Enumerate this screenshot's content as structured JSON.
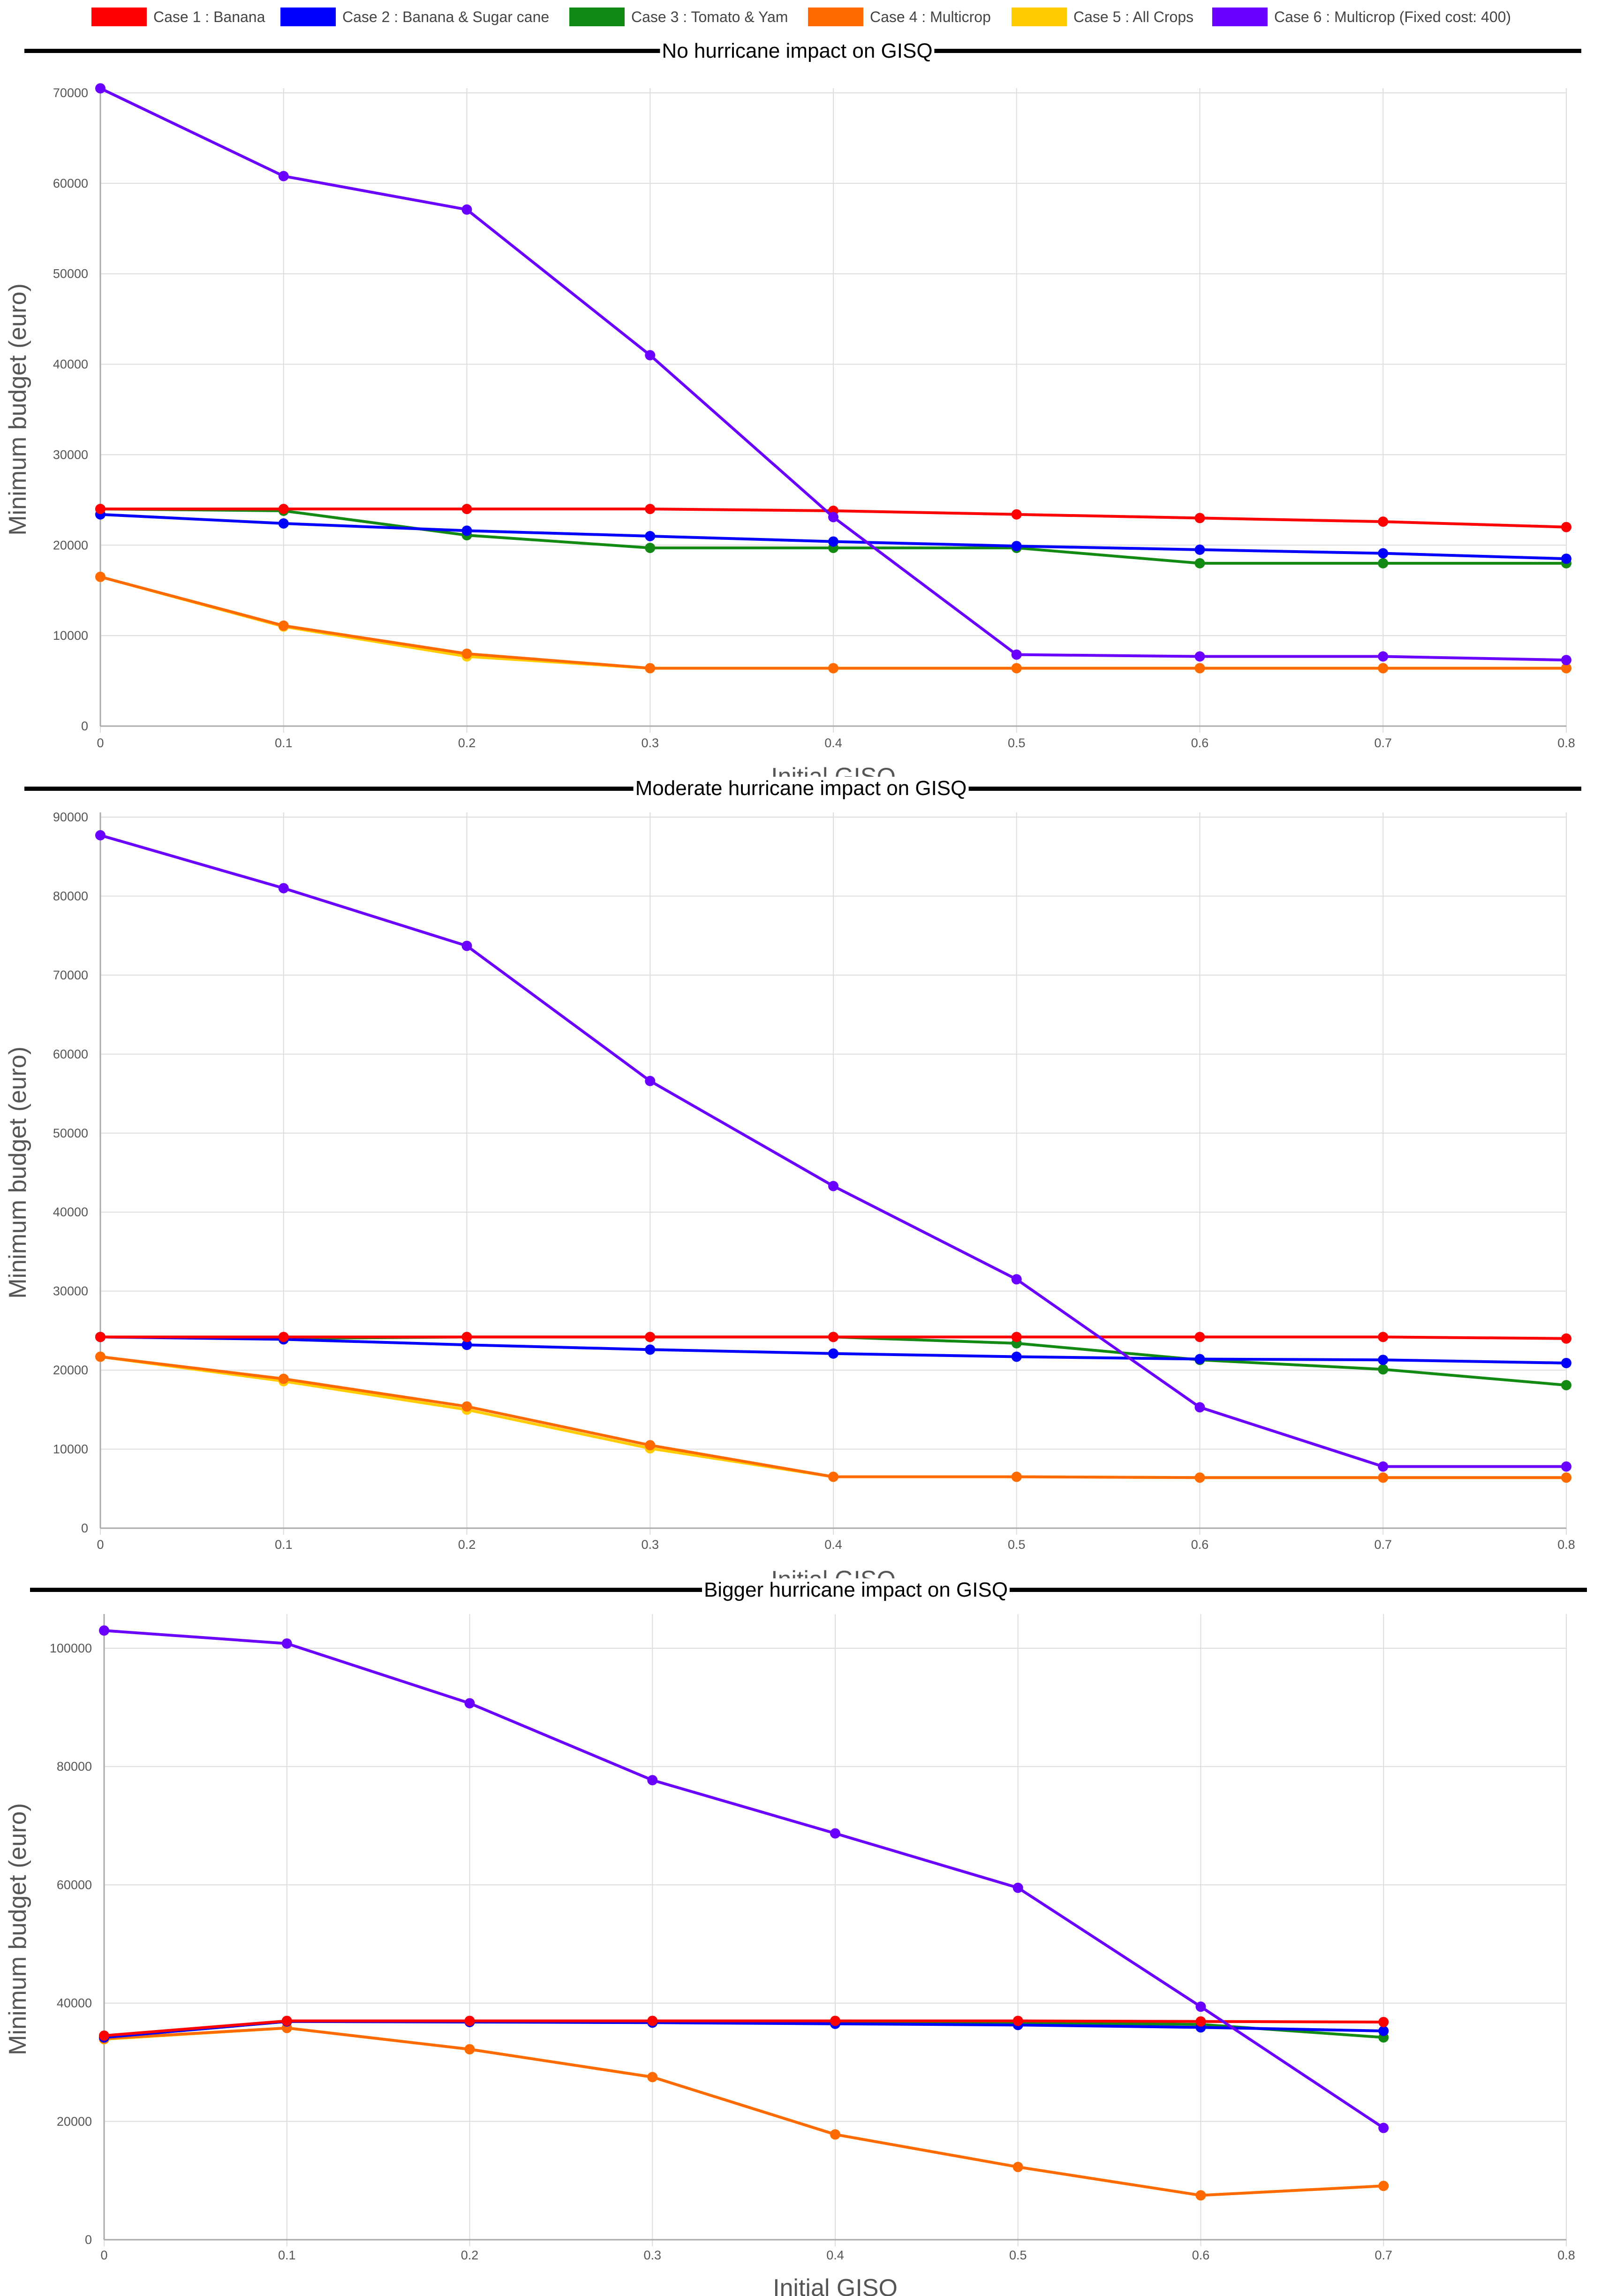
{
  "legend": {
    "items": [
      {
        "label": "Case 1 : Banana",
        "color": "#ff0000"
      },
      {
        "label": "Case 2 : Banana & Sugar cane",
        "color": "#0000ff"
      },
      {
        "label": "Case 3 : Tomato & Yam",
        "color": "#138a13"
      },
      {
        "label": "Case 4 : Multicrop",
        "color": "#ff6a00"
      },
      {
        "label": "Case 5 : All Crops",
        "color": "#ffcc00"
      },
      {
        "label": "Case 6 : Multicrop (Fixed cost: 400)",
        "color": "#6a00ff"
      }
    ]
  },
  "chart_data": [
    {
      "type": "line",
      "title": "No hurricane impact on GISQ",
      "xlabel": "Initial GISQ",
      "ylabel": "Minimum budget (euro)",
      "x": [
        0,
        0.1,
        0.2,
        0.3,
        0.4,
        0.5,
        0.6,
        0.7,
        0.8
      ],
      "xticks": [
        "0",
        "0.1",
        "0.2",
        "0.3",
        "0.4",
        "0.5",
        "0.6",
        "0.7",
        "0.8"
      ],
      "xlim": [
        0,
        0.8
      ],
      "ylim": [
        0,
        70000
      ],
      "yticks": [
        "0",
        "10000",
        "20000",
        "30000",
        "40000",
        "50000",
        "60000",
        "70000"
      ],
      "series": [
        {
          "name": "Case 5 : All Crops",
          "values": [
            16500,
            11000,
            7700,
            6400,
            6400,
            6400,
            6400,
            6400,
            6400
          ]
        },
        {
          "name": "Case 4 : Multicrop",
          "values": [
            16500,
            11100,
            8000,
            6400,
            6400,
            6400,
            6400,
            6400,
            6400
          ]
        },
        {
          "name": "Case 3 : Tomato & Yam",
          "values": [
            24000,
            23800,
            21100,
            19700,
            19700,
            19700,
            18000,
            18000,
            18000
          ]
        },
        {
          "name": "Case 2 : Banana & Sugar cane",
          "values": [
            23400,
            22400,
            21600,
            21000,
            20400,
            19900,
            19500,
            19100,
            18500
          ]
        },
        {
          "name": "Case 1 : Banana",
          "values": [
            24000,
            24000,
            24000,
            24000,
            23800,
            23400,
            23000,
            22600,
            22000
          ]
        },
        {
          "name": "Case 6 : Multicrop (Fixed cost: 400)",
          "values": [
            70500,
            60800,
            57100,
            41000,
            23100,
            7900,
            7700,
            7700,
            7300
          ]
        }
      ]
    },
    {
      "type": "line",
      "title": "Moderate hurricane impact on GISQ",
      "xlabel": "Initial GISQ",
      "ylabel": "Minimum budget (euro)",
      "x": [
        0,
        0.1,
        0.2,
        0.3,
        0.4,
        0.5,
        0.6,
        0.7,
        0.8
      ],
      "xticks": [
        "0",
        "0.1",
        "0.2",
        "0.3",
        "0.4",
        "0.5",
        "0.6",
        "0.7",
        "0.8"
      ],
      "xlim": [
        0,
        0.8
      ],
      "ylim": [
        0,
        90000
      ],
      "yticks": [
        "0",
        "10000",
        "20000",
        "30000",
        "40000",
        "50000",
        "60000",
        "70000",
        "80000",
        "90000"
      ],
      "series": [
        {
          "name": "Case 5 : All Crops",
          "values": [
            21700,
            18600,
            15000,
            10100,
            6500,
            6500,
            6400,
            6400,
            6400
          ]
        },
        {
          "name": "Case 4 : Multicrop",
          "values": [
            21700,
            18900,
            15400,
            10500,
            6500,
            6500,
            6400,
            6400,
            6400
          ]
        },
        {
          "name": "Case 3 : Tomato & Yam",
          "values": [
            24200,
            24000,
            24200,
            24200,
            24200,
            23400,
            21300,
            20100,
            18100
          ]
        },
        {
          "name": "Case 2 : Banana & Sugar cane",
          "values": [
            24200,
            23900,
            23200,
            22600,
            22100,
            21700,
            21400,
            21300,
            20900
          ]
        },
        {
          "name": "Case 1 : Banana",
          "values": [
            24200,
            24200,
            24200,
            24200,
            24200,
            24200,
            24200,
            24200,
            24000
          ]
        },
        {
          "name": "Case 6 : Multicrop (Fixed cost: 400)",
          "values": [
            87700,
            81000,
            73700,
            56600,
            43300,
            31500,
            15300,
            7800,
            7800
          ]
        }
      ]
    },
    {
      "type": "line",
      "title": "Bigger hurricane impact on GISQ",
      "xlabel": "Initial GISQ",
      "ylabel": "Minimum budget (euro)",
      "x": [
        0,
        0.1,
        0.2,
        0.3,
        0.4,
        0.5,
        0.6,
        0.7
      ],
      "xticks": [
        "0",
        "0.1",
        "0.2",
        "0.3",
        "0.4",
        "0.5",
        "0.6",
        "0.7",
        "0.8"
      ],
      "xlim": [
        0,
        0.8
      ],
      "ylim": [
        0,
        105000
      ],
      "yticks": [
        "0",
        "20000",
        "40000",
        "60000",
        "80000",
        "100000"
      ],
      "series": [
        {
          "name": "Case 5 : All Crops",
          "values": [
            33900,
            35800,
            32200,
            27500,
            17800,
            12300,
            7500,
            9100
          ]
        },
        {
          "name": "Case 4 : Multicrop",
          "values": [
            34000,
            35800,
            32200,
            27500,
            17800,
            12300,
            7500,
            9100
          ]
        },
        {
          "name": "Case 3 : Tomato & Yam",
          "values": [
            34200,
            36900,
            36900,
            36900,
            36800,
            36700,
            36400,
            34200
          ]
        },
        {
          "name": "Case 2 : Banana & Sugar cane",
          "values": [
            34200,
            36900,
            36800,
            36700,
            36500,
            36300,
            35900,
            35300
          ]
        },
        {
          "name": "Case 1 : Banana",
          "values": [
            34500,
            37000,
            37000,
            37000,
            37000,
            37000,
            36900,
            36800
          ]
        },
        {
          "name": "Case 6 : Multicrop (Fixed cost: 400)",
          "values": [
            103000,
            100800,
            90700,
            77700,
            68700,
            59500,
            39400,
            18900
          ]
        }
      ]
    }
  ]
}
